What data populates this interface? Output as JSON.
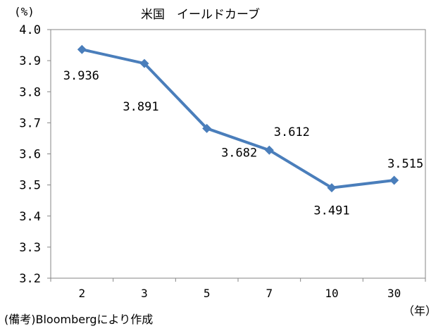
{
  "chart_data": {
    "type": "line",
    "title": "米国　イールドカーブ",
    "y_unit": "(%)",
    "x_unit": "（年）",
    "categories": [
      "2",
      "3",
      "5",
      "7",
      "10",
      "30"
    ],
    "series": [
      {
        "values": [
          3.936,
          3.891,
          3.682,
          3.612,
          3.491,
          3.515
        ],
        "labels": [
          "3.936",
          "3.891",
          "3.682",
          "3.612",
          "3.491",
          "3.515"
        ],
        "color": "#4a7ebb"
      }
    ],
    "ylim": [
      3.2,
      4.0
    ],
    "yticks": [
      "3.2",
      "3.3",
      "3.4",
      "3.5",
      "3.6",
      "3.7",
      "3.8",
      "3.9",
      "4.0"
    ],
    "grid": false,
    "legend": "none"
  },
  "source": "(備考)Bloombergにより作成"
}
